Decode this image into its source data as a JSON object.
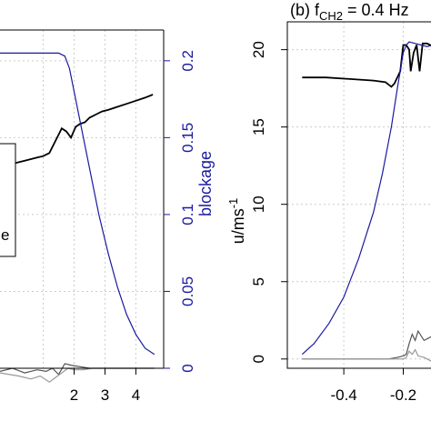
{
  "chart_data": [
    {
      "type": "line",
      "panel": "a",
      "title": "",
      "xlim": [
        -0.4,
        4.9
      ],
      "ylim_left": [
        0,
        22
      ],
      "ylim_right": [
        0,
        0.22
      ],
      "x_ticks": [
        2,
        3,
        4
      ],
      "y2_ticks": [
        "0",
        "0.05",
        "0.1",
        "0.15",
        "0.2"
      ],
      "ylabel_right": "blockage",
      "legend": {
        "placement": "left-middle",
        "visible_text": "e"
      },
      "grid": true,
      "colors": {
        "blockage": "#1a1aa0",
        "velocity": "#000000",
        "fluct1": "#555555",
        "fluct2": "#999999"
      },
      "series": [
        {
          "key": "velocity",
          "axis": "left",
          "x": [
            -0.4,
            0.0,
            0.4,
            0.8,
            1.0,
            1.2,
            1.35,
            1.5,
            1.6,
            1.75,
            1.9,
            2.05,
            2.2,
            2.35,
            2.5,
            2.7,
            2.9,
            3.1,
            3.4,
            3.7,
            4.0,
            4.3,
            4.55
          ],
          "y": [
            13.2,
            13.3,
            13.5,
            13.7,
            13.8,
            14.0,
            14.6,
            15.2,
            15.6,
            15.4,
            15.0,
            15.7,
            15.9,
            16.0,
            16.3,
            16.5,
            16.7,
            16.8,
            17.0,
            17.2,
            17.4,
            17.6,
            17.8
          ]
        },
        {
          "key": "blockage",
          "axis": "right",
          "x": [
            -0.4,
            0.5,
            1.0,
            1.3,
            1.5,
            1.7,
            1.85,
            2.0,
            2.2,
            2.5,
            2.8,
            3.1,
            3.4,
            3.7,
            4.0,
            4.3,
            4.6
          ],
          "y": [
            0.205,
            0.205,
            0.205,
            0.205,
            0.205,
            0.203,
            0.195,
            0.18,
            0.16,
            0.13,
            0.1,
            0.075,
            0.053,
            0.035,
            0.022,
            0.013,
            0.009
          ]
        },
        {
          "key": "fluct1",
          "axis": "left",
          "x": [
            -0.4,
            0.0,
            0.4,
            0.8,
            1.1,
            1.3,
            1.5,
            1.7,
            1.9,
            2.2,
            2.5,
            3.0,
            3.5,
            4.0,
            4.6
          ],
          "y": [
            -0.2,
            0.0,
            -0.3,
            -0.1,
            -0.2,
            0.0,
            -0.4,
            0.3,
            0.2,
            0.1,
            0.0,
            0.0,
            0.0,
            0.0,
            0.0
          ]
        },
        {
          "key": "fluct2",
          "axis": "left",
          "x": [
            -0.4,
            0.2,
            0.6,
            0.9,
            1.2,
            1.4,
            1.6,
            1.8,
            2.0,
            2.3,
            2.6,
            3.0,
            3.5,
            4.0,
            4.6
          ],
          "y": [
            -0.3,
            -0.5,
            -0.7,
            -0.5,
            -0.9,
            -0.6,
            -0.3,
            0.0,
            -0.1,
            -0.1,
            0.0,
            0.0,
            0.0,
            0.0,
            0.0
          ]
        }
      ]
    },
    {
      "type": "line",
      "panel": "b",
      "title": "(b) f",
      "title_sub": "CH2",
      "title_rest": " = 0.4 Hz",
      "xlim": [
        -0.59,
        -0.07
      ],
      "ylim": [
        -0.6,
        21.8
      ],
      "x_ticks": [
        "-0.4",
        "-0.2"
      ],
      "x_tick_values": [
        -0.4,
        -0.2
      ],
      "y_ticks": [
        "0",
        "5",
        "10",
        "15",
        "20"
      ],
      "y_tick_values": [
        0,
        5,
        10,
        15,
        20
      ],
      "ylabel": "u/ms",
      "ylabel_sup": "-1",
      "grid": true,
      "series": [
        {
          "key": "velocity",
          "x": [
            -0.54,
            -0.46,
            -0.38,
            -0.3,
            -0.26,
            -0.24,
            -0.23,
            -0.21,
            -0.2,
            -0.19,
            -0.18,
            -0.175,
            -0.165,
            -0.155,
            -0.145,
            -0.135,
            -0.12,
            -0.1
          ],
          "y": [
            18.2,
            18.2,
            18.1,
            18.0,
            17.9,
            17.6,
            17.8,
            18.6,
            20.3,
            20.3,
            20.0,
            18.6,
            19.8,
            20.3,
            18.6,
            20.4,
            20.4,
            20.2
          ]
        },
        {
          "key": "blockage",
          "scale": "u-equivalent",
          "x": [
            -0.54,
            -0.5,
            -0.45,
            -0.4,
            -0.35,
            -0.3,
            -0.27,
            -0.24,
            -0.22,
            -0.2,
            -0.19,
            -0.18,
            -0.16,
            -0.14,
            -0.12,
            -0.1
          ],
          "y": [
            0.3,
            1.0,
            2.3,
            4.0,
            6.5,
            9.5,
            12.0,
            15.0,
            17.5,
            19.8,
            20.3,
            20.5,
            20.4,
            20.3,
            20.2,
            20.3
          ]
        },
        {
          "key": "fluct1",
          "x": [
            -0.54,
            -0.4,
            -0.3,
            -0.25,
            -0.22,
            -0.2,
            -0.19,
            -0.18,
            -0.17,
            -0.16,
            -0.15,
            -0.13,
            -0.1
          ],
          "y": [
            0.0,
            0.0,
            0.0,
            0.0,
            0.1,
            0.2,
            0.3,
            1.0,
            1.6,
            1.2,
            1.8,
            1.2,
            1.5
          ]
        },
        {
          "key": "fluct2",
          "x": [
            -0.54,
            -0.4,
            -0.3,
            -0.25,
            -0.22,
            -0.2,
            -0.19,
            -0.18,
            -0.17,
            -0.16,
            -0.15,
            -0.13,
            -0.1
          ],
          "y": [
            0.0,
            0.0,
            0.0,
            0.0,
            0.0,
            0.0,
            0.1,
            0.5,
            0.3,
            0.6,
            0.2,
            0.1,
            -0.2
          ]
        }
      ]
    }
  ]
}
